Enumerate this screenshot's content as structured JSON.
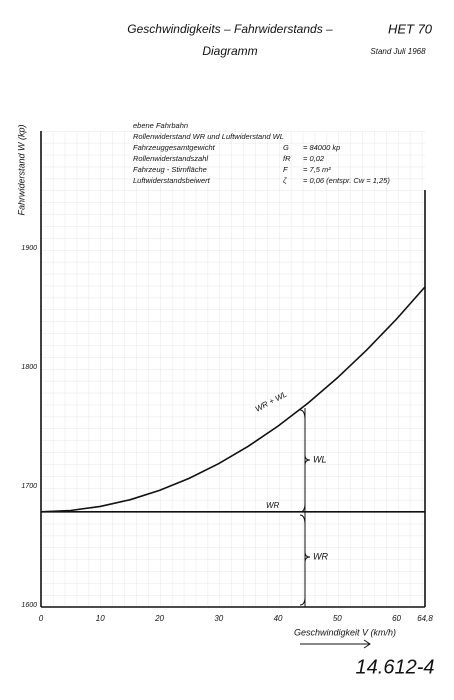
{
  "chart_data": {
    "type": "line",
    "title": "Geschwindigkeits – Fahrwiderstands –",
    "subtitle": "Diagramm",
    "code": "HET 70",
    "date": "Stand Juli 1968",
    "document_number": "14.612-4",
    "y_label": "Fahrwiderstand  W (kp)",
    "x_label": "Geschwindigkeit  V (km/h)",
    "notes": [
      [
        "ebene Fahrbahn"
      ],
      [
        "Rollenwiderstand WR und Luftwiderstand WL"
      ],
      [
        "Fahrzeuggesamtgewicht",
        "G",
        "= 84000 kp"
      ],
      [
        "Rollenwiderstandszahl",
        "fR",
        "= 0,02"
      ],
      [
        "Fahrzeug - Stirnfläche",
        "F",
        "= 7,5 m²"
      ],
      [
        "Luftwiderstandsbeiwert",
        "ζ",
        "= 0,06 (entspr. Cw = 1,25)"
      ]
    ],
    "brace_labels": [
      "WL",
      "WR"
    ],
    "xlim": [
      0,
      64.8
    ],
    "xticks": [
      0,
      10,
      20,
      30,
      40,
      50,
      60,
      {
        "value": 64.8,
        "label": "64,8"
      }
    ],
    "ylim": [
      1600,
      2000
    ],
    "yticks": [
      1600,
      1700,
      1800,
      1900
    ],
    "grid": true,
    "series": [
      {
        "name": "WR + WL",
        "color": "#111111",
        "x": [
          0,
          5,
          10,
          15,
          20,
          25,
          30,
          35,
          40,
          45,
          50,
          55,
          60,
          64.8
        ],
        "values": [
          1680,
          1681.1,
          1684.5,
          1690.1,
          1698,
          1708.1,
          1720.5,
          1735.1,
          1752,
          1771.1,
          1792.5,
          1816.1,
          1842,
          1869
        ]
      },
      {
        "name": "WR",
        "color": "#111111",
        "x": [
          0,
          64.8
        ],
        "values": [
          1680,
          1680
        ]
      }
    ]
  }
}
